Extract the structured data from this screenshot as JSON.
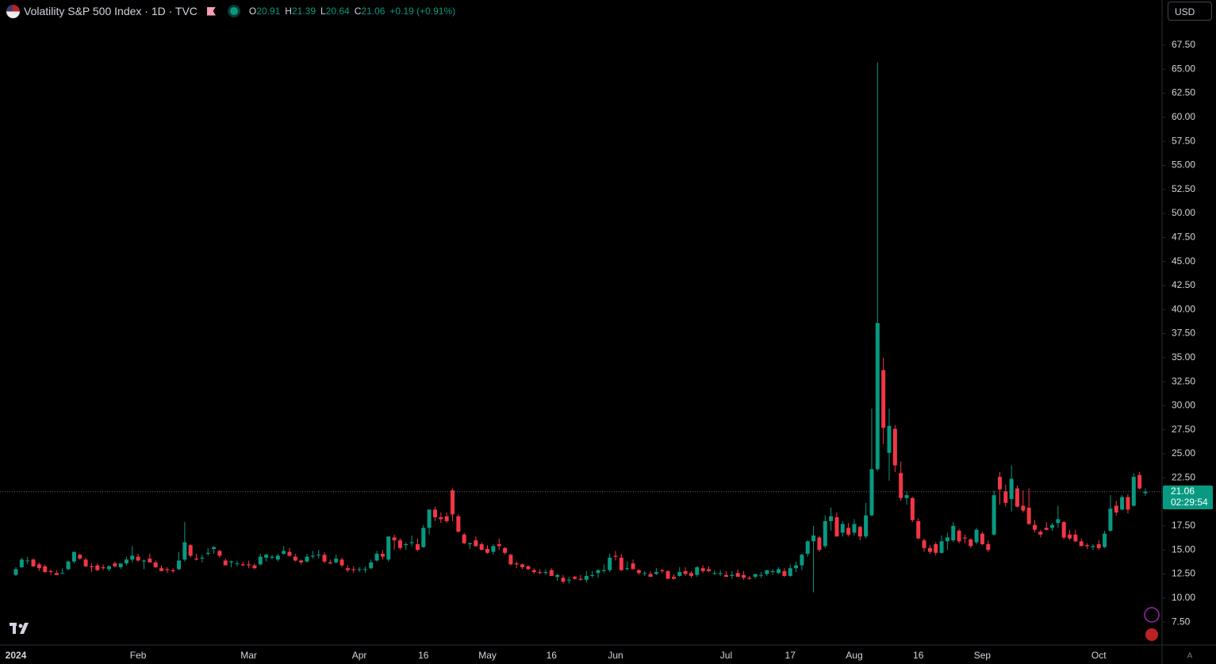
{
  "header": {
    "title": "Volatility S&P 500 Index · 1D · TVC",
    "ohlc_labels": [
      "O",
      "H",
      "L",
      "C"
    ],
    "change": "+0.19 (+0.91%)",
    "currency": "USD",
    "countdown": "02:29:54",
    "badge": "A"
  },
  "chart_data": {
    "type": "candlestick",
    "up_color": "#089981",
    "down_color": "#f23645",
    "grid": false,
    "ylim": [
      5.2,
      72.2
    ],
    "yticks": [
      {
        "value": 7.5,
        "label": "7.50"
      },
      {
        "value": 10,
        "label": "10.00"
      },
      {
        "value": 12.5,
        "label": "12.50"
      },
      {
        "value": 15,
        "label": "15.00"
      },
      {
        "value": 17.5,
        "label": "17.50"
      },
      {
        "value": 20,
        "label": "20.00"
      },
      {
        "value": 22.5,
        "label": "22.50"
      },
      {
        "value": 25,
        "label": "25.00"
      },
      {
        "value": 27.5,
        "label": "27.50"
      },
      {
        "value": 30,
        "label": "30.00"
      },
      {
        "value": 32.5,
        "label": "32.50"
      },
      {
        "value": 35,
        "label": "35.00"
      },
      {
        "value": 37.5,
        "label": "37.50"
      },
      {
        "value": 40,
        "label": "40.00"
      },
      {
        "value": 42.5,
        "label": "42.50"
      },
      {
        "value": 45,
        "label": "45.00"
      },
      {
        "value": 47.5,
        "label": "47.50"
      },
      {
        "value": 50,
        "label": "50.00"
      },
      {
        "value": 52.5,
        "label": "52.50"
      },
      {
        "value": 55,
        "label": "55.00"
      },
      {
        "value": 57.5,
        "label": "57.50"
      },
      {
        "value": 60,
        "label": "60.00"
      },
      {
        "value": 62.5,
        "label": "62.50"
      },
      {
        "value": 65,
        "label": "65.00"
      },
      {
        "value": 67.5,
        "label": "67.50"
      }
    ],
    "categories": [
      "2024",
      null,
      null,
      null,
      null,
      null,
      null,
      null,
      null,
      null,
      null,
      null,
      null,
      null,
      null,
      null,
      null,
      null,
      null,
      null,
      null,
      "Feb",
      null,
      null,
      null,
      null,
      null,
      null,
      null,
      null,
      null,
      null,
      null,
      null,
      null,
      null,
      null,
      null,
      null,
      null,
      "Mar",
      null,
      null,
      null,
      null,
      null,
      null,
      null,
      null,
      null,
      null,
      null,
      null,
      null,
      null,
      null,
      null,
      null,
      null,
      "Apr",
      null,
      null,
      null,
      null,
      null,
      null,
      null,
      null,
      null,
      null,
      "16",
      null,
      null,
      null,
      null,
      null,
      null,
      null,
      null,
      null,
      null,
      "May",
      null,
      null,
      null,
      null,
      null,
      null,
      null,
      null,
      null,
      null,
      "16",
      null,
      null,
      null,
      null,
      null,
      null,
      null,
      null,
      null,
      null,
      "Jun",
      null,
      null,
      null,
      null,
      null,
      null,
      null,
      null,
      null,
      null,
      null,
      null,
      null,
      null,
      null,
      null,
      null,
      null,
      "Jul",
      null,
      null,
      null,
      null,
      null,
      null,
      null,
      null,
      null,
      null,
      "17",
      null,
      null,
      null,
      null,
      null,
      null,
      null,
      null,
      null,
      null,
      "Aug",
      null,
      null,
      null,
      null,
      null,
      null,
      null,
      null,
      null,
      null,
      "16",
      null,
      null,
      null,
      null,
      null,
      null,
      null,
      null,
      null,
      null,
      "Sep",
      null,
      null,
      null,
      null,
      null,
      null,
      null,
      null,
      null,
      null,
      null,
      null,
      null,
      null,
      null,
      null,
      null,
      null,
      null,
      "Oct",
      null,
      null,
      null,
      null,
      null,
      null
    ],
    "candles": [
      [
        12.4,
        13.2,
        12.3,
        13.0
      ],
      [
        13.2,
        14.2,
        13.1,
        14.0
      ],
      [
        13.9,
        14.3,
        13.5,
        13.9
      ],
      [
        14.0,
        14.1,
        13.2,
        13.3
      ],
      [
        13.5,
        13.7,
        12.8,
        13.1
      ],
      [
        13.3,
        13.5,
        12.6,
        12.7
      ],
      [
        12.8,
        13.0,
        12.4,
        12.7
      ],
      [
        12.6,
        12.9,
        12.4,
        12.4
      ],
      [
        12.6,
        13.1,
        12.5,
        12.6
      ],
      [
        13.0,
        13.9,
        12.9,
        13.8
      ],
      [
        13.8,
        14.8,
        13.6,
        14.8
      ],
      [
        14.5,
        14.6,
        14.0,
        14.1
      ],
      [
        14.0,
        14.2,
        13.2,
        13.3
      ],
      [
        13.3,
        13.6,
        12.7,
        13.2
      ],
      [
        13.4,
        13.6,
        12.8,
        12.9
      ],
      [
        13.2,
        13.5,
        12.9,
        13.1
      ],
      [
        13.0,
        13.4,
        12.8,
        13.3
      ],
      [
        13.6,
        13.8,
        13.2,
        13.3
      ],
      [
        13.2,
        13.6,
        13.0,
        13.6
      ],
      [
        13.6,
        14.3,
        13.4,
        14.0
      ],
      [
        14.0,
        15.4,
        13.7,
        14.4
      ],
      [
        14.3,
        14.6,
        13.8,
        13.9
      ],
      [
        13.8,
        14.0,
        13.0,
        13.9
      ],
      [
        14.1,
        14.6,
        13.7,
        13.7
      ],
      [
        13.7,
        13.9,
        13.1,
        13.2
      ],
      [
        13.1,
        13.4,
        12.8,
        12.8
      ],
      [
        13.0,
        13.2,
        12.6,
        12.9
      ],
      [
        12.9,
        13.1,
        12.6,
        12.8
      ],
      [
        13.0,
        14.8,
        12.9,
        13.9
      ],
      [
        14.0,
        17.9,
        13.8,
        15.8
      ],
      [
        15.5,
        15.6,
        14.2,
        14.4
      ],
      [
        14.1,
        14.6,
        13.9,
        14.0
      ],
      [
        14.1,
        14.5,
        13.7,
        14.2
      ],
      [
        14.6,
        15.2,
        14.4,
        14.7
      ],
      [
        15.1,
        15.4,
        14.6,
        15.3
      ],
      [
        14.9,
        15.0,
        14.2,
        14.4
      ],
      [
        13.9,
        14.1,
        13.4,
        13.4
      ],
      [
        13.7,
        13.9,
        13.2,
        13.8
      ],
      [
        13.6,
        13.9,
        13.3,
        13.6
      ],
      [
        13.5,
        13.8,
        13.3,
        13.4
      ],
      [
        13.5,
        13.9,
        13.1,
        13.4
      ],
      [
        13.4,
        13.6,
        13.0,
        13.1
      ],
      [
        13.5,
        14.6,
        13.4,
        14.3
      ],
      [
        14.2,
        14.6,
        13.8,
        14.5
      ],
      [
        14.2,
        14.5,
        14.0,
        14.3
      ],
      [
        14.0,
        14.6,
        13.8,
        14.4
      ],
      [
        14.6,
        15.4,
        14.5,
        14.9
      ],
      [
        14.8,
        15.2,
        14.3,
        14.4
      ],
      [
        14.3,
        14.6,
        13.8,
        13.9
      ],
      [
        13.9,
        14.0,
        13.5,
        13.7
      ],
      [
        13.8,
        14.6,
        13.7,
        14.3
      ],
      [
        14.3,
        14.9,
        14.1,
        14.4
      ],
      [
        14.5,
        15.0,
        14.1,
        14.5
      ],
      [
        14.5,
        14.8,
        13.6,
        13.8
      ],
      [
        13.7,
        14.0,
        13.5,
        13.6
      ],
      [
        13.7,
        14.5,
        13.6,
        14.1
      ],
      [
        14.0,
        14.2,
        13.2,
        13.4
      ],
      [
        13.1,
        13.4,
        12.7,
        12.9
      ],
      [
        13.0,
        13.3,
        12.6,
        12.9
      ],
      [
        13.0,
        13.2,
        12.7,
        13.0
      ],
      [
        13.0,
        13.3,
        12.6,
        13.0
      ],
      [
        13.1,
        14.0,
        13.0,
        13.7
      ],
      [
        13.9,
        14.9,
        13.8,
        14.6
      ],
      [
        14.6,
        15.0,
        14.0,
        14.3
      ],
      [
        14.0,
        16.4,
        13.8,
        16.4
      ],
      [
        16.3,
        16.6,
        15.0,
        16.0
      ],
      [
        16.0,
        16.2,
        15.0,
        15.2
      ],
      [
        15.5,
        15.8,
        15.0,
        15.6
      ],
      [
        15.7,
        16.5,
        15.4,
        15.8
      ],
      [
        15.6,
        16.2,
        14.9,
        15.0
      ],
      [
        15.3,
        17.6,
        15.2,
        17.3
      ],
      [
        17.3,
        19.2,
        16.6,
        19.2
      ],
      [
        19.2,
        19.5,
        18.0,
        18.4
      ],
      [
        18.4,
        18.9,
        17.8,
        18.2
      ],
      [
        18.5,
        18.9,
        17.8,
        18.0
      ],
      [
        21.2,
        21.4,
        18.0,
        18.7
      ],
      [
        18.5,
        18.7,
        16.8,
        16.9
      ],
      [
        16.6,
        16.8,
        15.6,
        15.7
      ],
      [
        15.6,
        15.8,
        15.1,
        15.7
      ],
      [
        16.0,
        16.4,
        15.3,
        15.4
      ],
      [
        15.6,
        15.8,
        15.0,
        15.0
      ],
      [
        15.1,
        15.5,
        14.6,
        14.7
      ],
      [
        14.8,
        15.6,
        14.5,
        15.4
      ],
      [
        15.6,
        16.2,
        15.0,
        15.4
      ],
      [
        15.2,
        15.3,
        14.5,
        14.7
      ],
      [
        14.5,
        14.6,
        13.4,
        13.5
      ],
      [
        13.6,
        13.8,
        13.1,
        13.5
      ],
      [
        13.5,
        13.6,
        13.0,
        13.2
      ],
      [
        13.3,
        13.4,
        12.9,
        13.0
      ],
      [
        12.9,
        13.1,
        12.5,
        12.7
      ],
      [
        12.7,
        13.0,
        12.5,
        12.6
      ],
      [
        12.6,
        13.0,
        12.4,
        12.7
      ],
      [
        12.9,
        13.1,
        12.3,
        12.3
      ],
      [
        12.2,
        12.5,
        11.8,
        12.4
      ],
      [
        12.1,
        12.4,
        11.5,
        11.7
      ],
      [
        11.9,
        12.2,
        11.5,
        11.9
      ],
      [
        12.2,
        12.3,
        11.9,
        12.0
      ],
      [
        12.0,
        12.4,
        11.8,
        11.9
      ],
      [
        11.9,
        12.8,
        11.6,
        12.3
      ],
      [
        12.3,
        12.8,
        12.1,
        12.4
      ],
      [
        12.6,
        13.0,
        12.1,
        12.9
      ],
      [
        12.8,
        13.5,
        12.6,
        12.9
      ],
      [
        12.9,
        14.6,
        12.7,
        14.2
      ],
      [
        14.4,
        14.9,
        13.9,
        14.3
      ],
      [
        14.2,
        14.6,
        12.8,
        12.9
      ],
      [
        13.0,
        13.8,
        12.9,
        13.1
      ],
      [
        13.6,
        14.0,
        13.0,
        13.0
      ],
      [
        12.9,
        13.0,
        12.4,
        12.6
      ],
      [
        12.6,
        12.8,
        12.3,
        12.6
      ],
      [
        12.5,
        12.8,
        12.2,
        12.2
      ],
      [
        12.5,
        13.1,
        12.4,
        12.7
      ],
      [
        12.9,
        13.0,
        12.6,
        12.8
      ],
      [
        12.8,
        12.9,
        12.0,
        12.0
      ],
      [
        12.2,
        12.5,
        11.9,
        12.0
      ],
      [
        12.3,
        13.2,
        12.2,
        12.7
      ],
      [
        12.8,
        13.2,
        12.3,
        12.5
      ],
      [
        12.6,
        12.8,
        12.1,
        12.3
      ],
      [
        12.4,
        13.3,
        12.2,
        13.2
      ],
      [
        13.1,
        13.4,
        12.6,
        12.8
      ],
      [
        13.0,
        13.3,
        12.7,
        12.8
      ],
      [
        12.6,
        12.9,
        12.4,
        12.6
      ],
      [
        12.5,
        12.9,
        12.3,
        12.6
      ],
      [
        12.4,
        12.8,
        12.2,
        12.2
      ],
      [
        12.3,
        12.8,
        12.0,
        12.4
      ],
      [
        12.6,
        13.0,
        12.2,
        12.2
      ],
      [
        12.4,
        12.8,
        11.9,
        12.1
      ],
      [
        12.1,
        12.3,
        11.9,
        12.0
      ],
      [
        12.2,
        12.5,
        12.0,
        12.5
      ],
      [
        12.4,
        12.7,
        12.1,
        12.4
      ],
      [
        12.5,
        12.9,
        12.3,
        12.9
      ],
      [
        12.7,
        13.0,
        12.4,
        12.8
      ],
      [
        12.6,
        13.2,
        12.5,
        13.0
      ],
      [
        12.8,
        13.1,
        12.2,
        12.3
      ],
      [
        12.3,
        13.5,
        12.2,
        13.1
      ],
      [
        13.1,
        13.8,
        12.7,
        13.4
      ],
      [
        13.4,
        14.6,
        12.9,
        14.5
      ],
      [
        14.6,
        16.0,
        14.3,
        15.9
      ],
      [
        15.9,
        17.5,
        10.6,
        16.5
      ],
      [
        16.3,
        16.5,
        14.8,
        15.0
      ],
      [
        15.4,
        18.6,
        15.2,
        18.0
      ],
      [
        18.0,
        19.4,
        17.0,
        18.5
      ],
      [
        18.4,
        18.9,
        16.4,
        16.4
      ],
      [
        16.8,
        18.0,
        16.4,
        17.7
      ],
      [
        17.3,
        17.8,
        16.4,
        16.6
      ],
      [
        16.8,
        18.2,
        16.5,
        17.7
      ],
      [
        17.4,
        17.5,
        16.0,
        16.4
      ],
      [
        16.4,
        19.9,
        16.2,
        18.6
      ],
      [
        18.6,
        29.7,
        18.5,
        23.4
      ],
      [
        23.4,
        65.7,
        23.2,
        38.6
      ],
      [
        33.7,
        35.0,
        26.0,
        27.7
      ],
      [
        25.1,
        29.7,
        22.2,
        27.9
      ],
      [
        27.6,
        28.0,
        23.1,
        23.8
      ],
      [
        23.0,
        24.2,
        20.1,
        20.4
      ],
      [
        20.4,
        21.1,
        19.7,
        20.7
      ],
      [
        20.4,
        20.5,
        17.9,
        18.1
      ],
      [
        18.0,
        18.3,
        16.1,
        16.2
      ],
      [
        16.0,
        16.2,
        14.8,
        15.2
      ],
      [
        15.2,
        15.5,
        14.6,
        14.8
      ],
      [
        15.6,
        15.8,
        14.4,
        14.7
      ],
      [
        14.7,
        16.5,
        14.6,
        15.9
      ],
      [
        15.9,
        16.8,
        15.0,
        16.3
      ],
      [
        16.0,
        17.9,
        15.8,
        17.5
      ],
      [
        17.0,
        17.2,
        15.7,
        15.9
      ],
      [
        16.3,
        16.6,
        15.7,
        16.2
      ],
      [
        16.1,
        16.2,
        15.2,
        15.4
      ],
      [
        15.8,
        17.3,
        15.6,
        17.1
      ],
      [
        16.7,
        16.9,
        15.5,
        15.6
      ],
      [
        15.6,
        16.0,
        14.8,
        15.0
      ],
      [
        16.6,
        21.2,
        16.5,
        20.7
      ],
      [
        22.6,
        23.1,
        19.7,
        21.3
      ],
      [
        21.1,
        21.8,
        19.5,
        19.9
      ],
      [
        20.3,
        23.8,
        19.0,
        22.4
      ],
      [
        21.4,
        21.7,
        19.4,
        19.5
      ],
      [
        19.6,
        21.2,
        18.9,
        19.1
      ],
      [
        19.4,
        21.4,
        17.6,
        17.7
      ],
      [
        17.6,
        18.1,
        16.8,
        17.1
      ],
      [
        16.9,
        17.1,
        16.3,
        16.6
      ],
      [
        17.3,
        17.9,
        17.0,
        17.1
      ],
      [
        17.3,
        17.8,
        17.0,
        17.6
      ],
      [
        17.8,
        19.6,
        17.3,
        18.2
      ],
      [
        17.9,
        18.0,
        16.1,
        16.3
      ],
      [
        16.6,
        17.1,
        16.0,
        16.2
      ],
      [
        16.6,
        17.1,
        15.8,
        15.9
      ],
      [
        15.9,
        16.2,
        15.4,
        15.4
      ],
      [
        15.5,
        15.7,
        15.1,
        15.4
      ],
      [
        15.3,
        15.6,
        15.0,
        15.4
      ],
      [
        15.6,
        16.0,
        15.0,
        15.2
      ],
      [
        15.3,
        17.0,
        15.2,
        16.7
      ],
      [
        17.0,
        20.7,
        16.9,
        19.3
      ],
      [
        19.6,
        20.1,
        18.6,
        18.9
      ],
      [
        19.2,
        20.7,
        19.1,
        20.5
      ],
      [
        20.5,
        20.8,
        18.8,
        19.2
      ],
      [
        19.6,
        23.0,
        19.5,
        22.6
      ],
      [
        22.8,
        23.1,
        21.3,
        21.4
      ],
      [
        20.91,
        21.39,
        20.64,
        21.06
      ]
    ]
  }
}
